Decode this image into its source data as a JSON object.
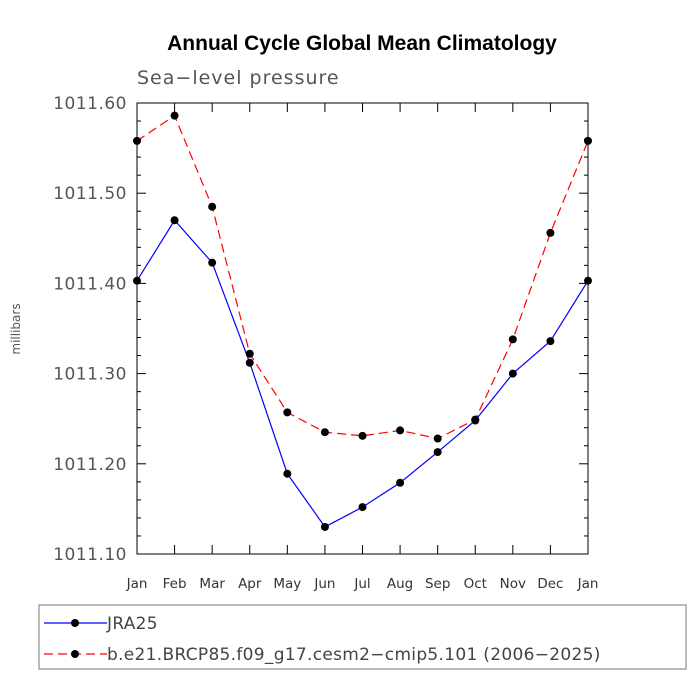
{
  "chart_data": {
    "type": "line",
    "title": "Annual Cycle Global Mean Climatology",
    "subtitle": "Sea−level pressure",
    "ylabel": "millibars",
    "xlabel": "",
    "categories": [
      "Jan",
      "Feb",
      "Mar",
      "Apr",
      "May",
      "Jun",
      "Jul",
      "Aug",
      "Sep",
      "Oct",
      "Nov",
      "Dec",
      "Jan"
    ],
    "ylim": [
      1011.1,
      1011.6
    ],
    "yticks": [
      "1011.10",
      "1011.20",
      "1011.30",
      "1011.40",
      "1011.50",
      "1011.60"
    ],
    "series": [
      {
        "name": "JRA25",
        "color": "#0000ff",
        "dash": "solid",
        "values": [
          1011.403,
          1011.47,
          1011.423,
          1011.312,
          1011.189,
          1011.13,
          1011.152,
          1011.179,
          1011.213,
          1011.248,
          1011.3,
          1011.336,
          1011.403
        ]
      },
      {
        "name": "b.e21.BRCP85.f09_g17.cesm2−cmip5.101 (2006−2025)",
        "color": "#ff0000",
        "dash": "dashed",
        "values": [
          1011.558,
          1011.586,
          1011.485,
          1011.322,
          1011.257,
          1011.235,
          1011.231,
          1011.237,
          1011.228,
          1011.249,
          1011.338,
          1011.456,
          1011.558
        ]
      }
    ],
    "legend_position": "bottom"
  }
}
